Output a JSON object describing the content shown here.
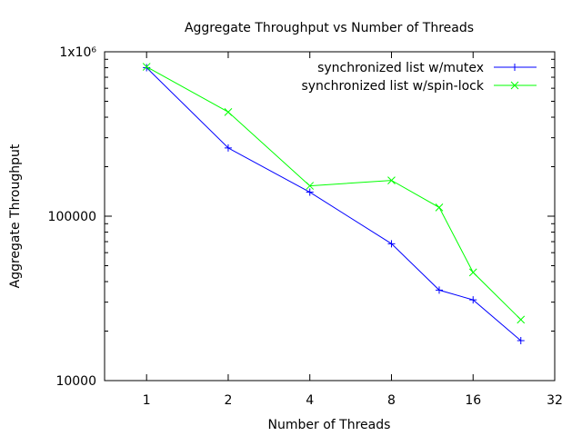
{
  "chart_data": {
    "type": "line",
    "title": "Aggregate Throughput vs Number of Threads",
    "xlabel": "Number of Threads",
    "ylabel": "Aggregate Throughput",
    "x_scale": "log2",
    "y_scale": "log10",
    "xlim": [
      0.7,
      32
    ],
    "ylim": [
      10000,
      1000000
    ],
    "x_ticks": [
      1,
      2,
      4,
      8,
      16,
      32
    ],
    "x_tick_labels": [
      "1",
      "2",
      "4",
      "8",
      "16",
      "32"
    ],
    "y_ticks": [
      10000,
      100000,
      1000000
    ],
    "y_tick_labels": [
      "10000",
      "100000",
      "1x10⁶"
    ],
    "grid": false,
    "legend_position": "top-right",
    "series": [
      {
        "name": "synchronized list w/mutex",
        "color": "#0000ff",
        "marker": "plus",
        "x": [
          1,
          2,
          4,
          8,
          12,
          16,
          24
        ],
        "y": [
          800000,
          260000,
          140000,
          68000,
          35500,
          31000,
          17500
        ]
      },
      {
        "name": "synchronized list w/spin-lock",
        "color": "#00ff00",
        "marker": "cross",
        "x": [
          1,
          2,
          4,
          8,
          12,
          16,
          24
        ],
        "y": [
          810000,
          430000,
          153000,
          165000,
          113000,
          45500,
          23500
        ]
      }
    ]
  }
}
